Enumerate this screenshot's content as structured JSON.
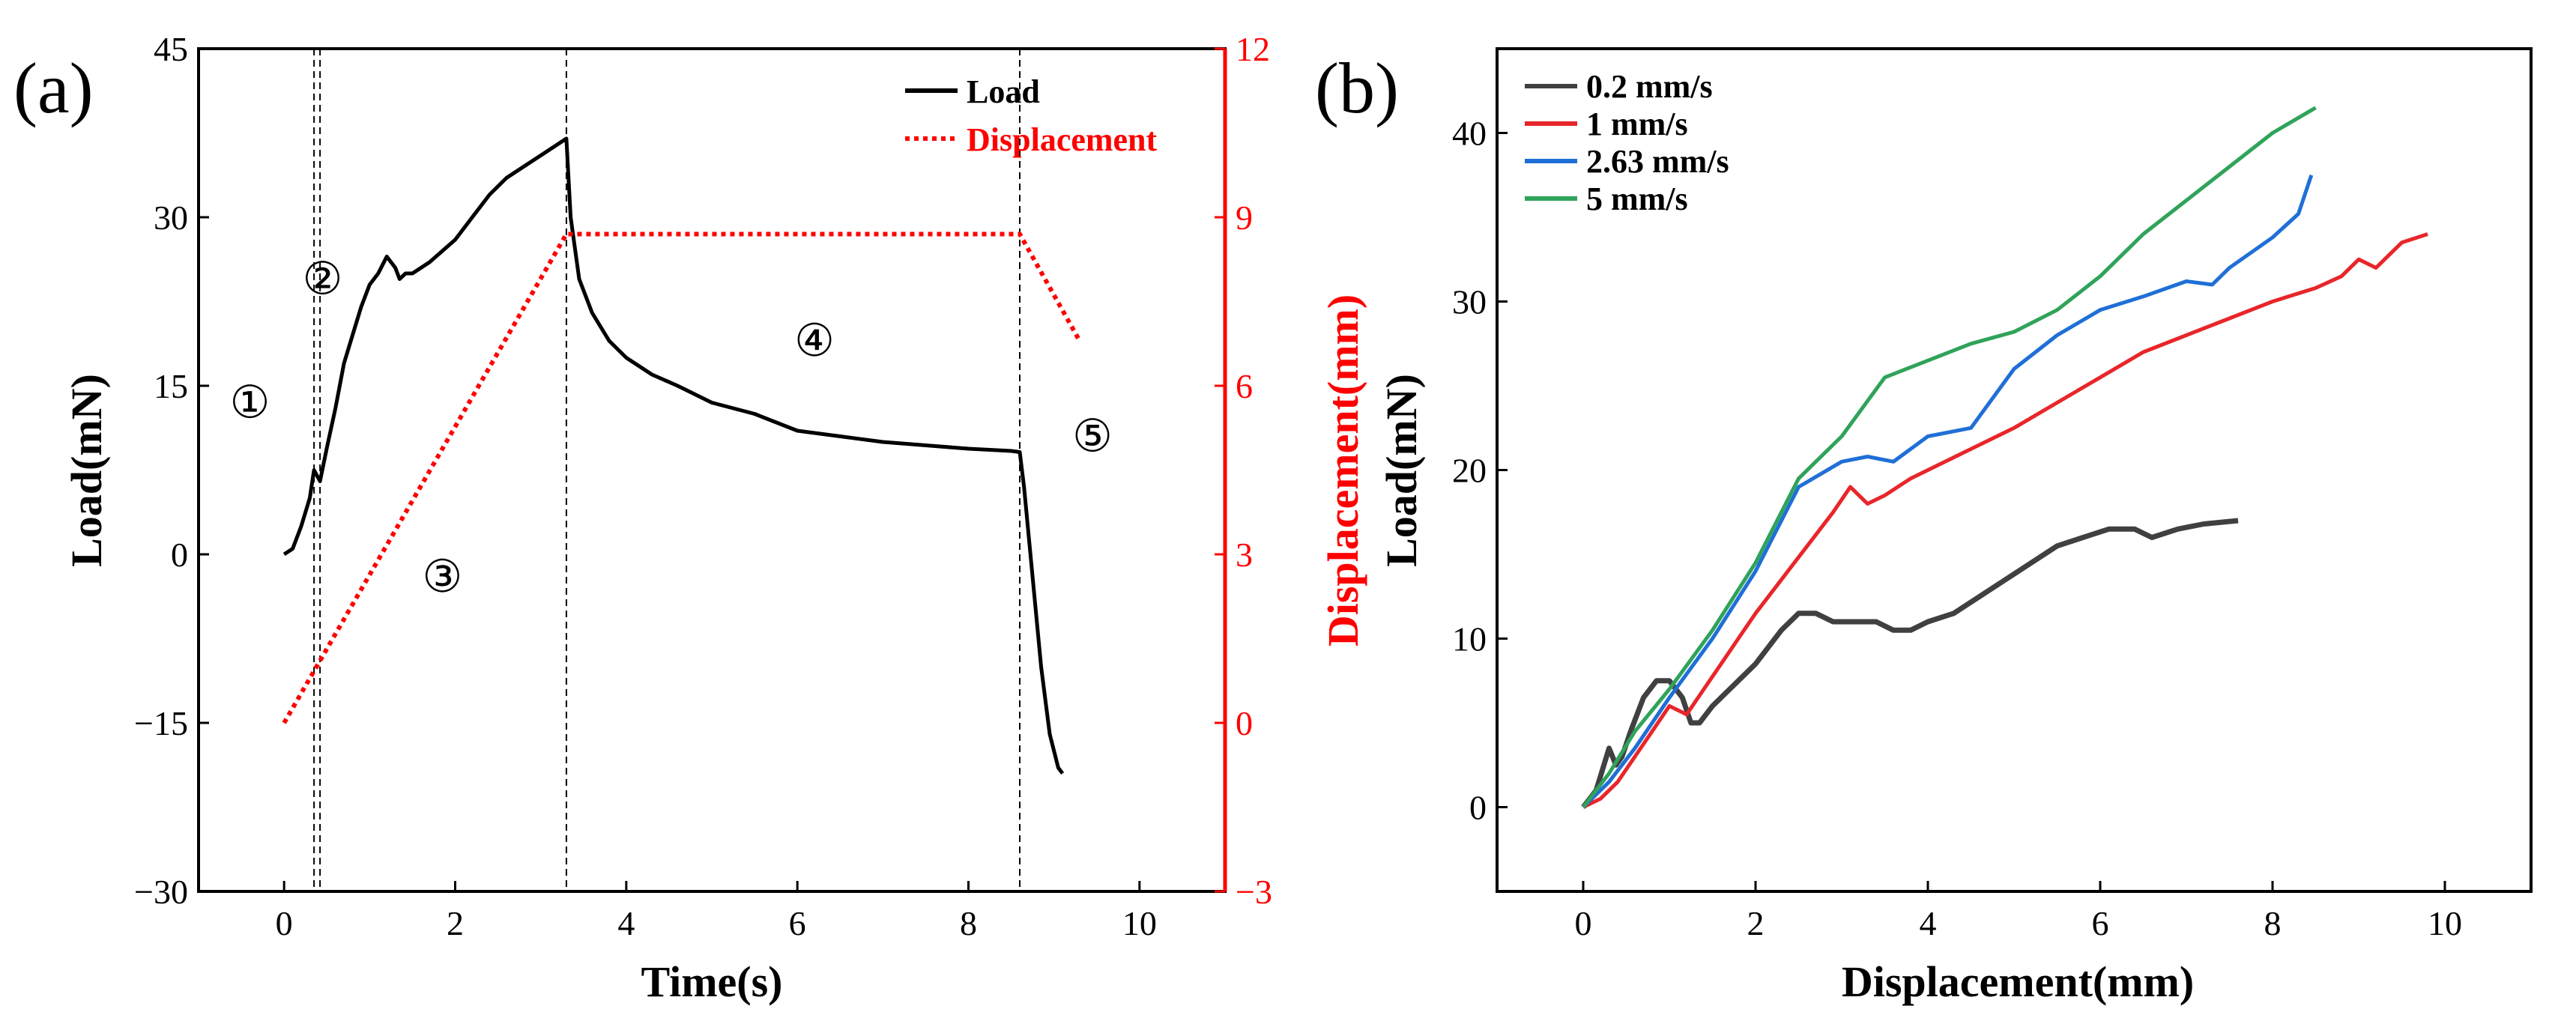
{
  "chart_data": [
    {
      "panel": "(a)",
      "type": "line",
      "xlabel": "Time(s)",
      "ylabel": "Load(mN)",
      "y2label": "Displacement(mm)",
      "xlim": [
        -1,
        11
      ],
      "ylim": [
        -30,
        45
      ],
      "y2lim": [
        -3,
        12
      ],
      "xticks": [
        "0",
        "2",
        "4",
        "6",
        "8",
        "10"
      ],
      "yticks": [
        "−30",
        "−15",
        "0",
        "15",
        "30",
        "45"
      ],
      "y2ticks": [
        "−3",
        "0",
        "3",
        "6",
        "9",
        "12"
      ],
      "legend": [
        "Load",
        "Displacement"
      ],
      "colors": {
        "load": "#000000",
        "displacement": "#ff0000"
      },
      "series": [
        {
          "name": "Load",
          "axis": "left",
          "x": [
            0,
            0.1,
            0.2,
            0.3,
            0.35,
            0.42,
            0.5,
            0.6,
            0.7,
            0.8,
            0.9,
            1.0,
            1.1,
            1.2,
            1.3,
            1.35,
            1.42,
            1.5,
            1.7,
            2.0,
            2.2,
            2.4,
            2.6,
            2.8,
            3.0,
            3.2,
            3.3,
            3.35,
            3.45,
            3.6,
            3.8,
            4.0,
            4.3,
            4.6,
            5.0,
            5.5,
            6.0,
            6.5,
            7.0,
            7.5,
            8.0,
            8.5,
            8.6,
            8.65,
            8.75,
            8.85,
            8.95,
            9.05,
            9.1
          ],
          "values": [
            0,
            0.5,
            2.5,
            5,
            7.5,
            6.5,
            9.5,
            13,
            17,
            19.5,
            22,
            24,
            25,
            26.5,
            25.5,
            24.5,
            25,
            25,
            26,
            28,
            30,
            32,
            33.5,
            34.5,
            35.5,
            36.5,
            37,
            30,
            24.5,
            21.5,
            19,
            17.5,
            16,
            15,
            13.5,
            12.5,
            11,
            10.5,
            10,
            9.7,
            9.4,
            9.2,
            9.1,
            6,
            -2,
            -10,
            -16,
            -19,
            -19.5
          ]
        },
        {
          "name": "Displacement",
          "axis": "right",
          "x": [
            0,
            3.3,
            8.6,
            9.3
          ],
          "values": [
            0,
            8.7,
            8.7,
            6.8
          ]
        }
      ],
      "vlines": [
        0.35,
        0.42,
        3.3,
        8.6
      ],
      "annotations": [
        {
          "text": "①",
          "x": -0.4,
          "y": 13.5
        },
        {
          "text": "②",
          "x": 0.45,
          "y": 24.5
        },
        {
          "text": "③",
          "x": 1.85,
          "y": -2
        },
        {
          "text": "④",
          "x": 6.2,
          "y": 19
        },
        {
          "text": "⑤",
          "x": 9.45,
          "y": 10.5
        }
      ]
    },
    {
      "panel": "(b)",
      "type": "line",
      "xlabel": "Displacement(mm)",
      "ylabel": "Load(mN)",
      "xlim": [
        -1,
        11
      ],
      "ylim": [
        -5,
        45
      ],
      "xticks": [
        "0",
        "2",
        "4",
        "6",
        "8",
        "10"
      ],
      "yticks": [
        "0",
        "10",
        "20",
        "30",
        "40"
      ],
      "legend": [
        "0.2 mm/s",
        "1 mm/s",
        "2.63 mm/s",
        "5 mm/s"
      ],
      "series": [
        {
          "name": "0.2 mm/s",
          "color": "#404040",
          "x": [
            0,
            0.15,
            0.3,
            0.38,
            0.45,
            0.55,
            0.7,
            0.85,
            1.0,
            1.15,
            1.25,
            1.35,
            1.5,
            1.7,
            2.0,
            2.3,
            2.5,
            2.7,
            2.9,
            3.1,
            3.4,
            3.6,
            3.8,
            4.0,
            4.3,
            4.6,
            4.9,
            5.2,
            5.5,
            5.8,
            6.1,
            6.4,
            6.6,
            6.9,
            7.2,
            7.6
          ],
          "values": [
            0,
            1,
            3.5,
            2.5,
            3,
            4.5,
            6.5,
            7.5,
            7.5,
            6.5,
            5,
            5,
            6,
            7,
            8.5,
            10.5,
            11.5,
            11.5,
            11,
            11,
            11,
            10.5,
            10.5,
            11,
            11.5,
            12.5,
            13.5,
            14.5,
            15.5,
            16,
            16.5,
            16.5,
            16,
            16.5,
            16.8,
            17
          ]
        },
        {
          "name": "1 mm/s",
          "color": "#e8262a",
          "x": [
            0,
            0.2,
            0.4,
            0.6,
            0.8,
            1.0,
            1.2,
            1.4,
            1.6,
            1.8,
            2.0,
            2.3,
            2.6,
            2.9,
            3.1,
            3.2,
            3.3,
            3.5,
            3.8,
            4.2,
            4.6,
            5.0,
            5.5,
            6.0,
            6.5,
            7.0,
            7.5,
            8.0,
            8.5,
            8.8,
            9.0,
            9.2,
            9.5,
            9.8
          ],
          "values": [
            0,
            0.5,
            1.5,
            3,
            4.5,
            6,
            5.5,
            7,
            8.5,
            10,
            11.5,
            13.5,
            15.5,
            17.5,
            19,
            18.5,
            18,
            18.5,
            19.5,
            20.5,
            21.5,
            22.5,
            24,
            25.5,
            27,
            28,
            29,
            30,
            30.8,
            31.5,
            32.5,
            32,
            33.5,
            34
          ]
        },
        {
          "name": "2.63 mm/s",
          "color": "#1f6fd6",
          "x": [
            0,
            0.3,
            0.6,
            1.0,
            1.5,
            2.0,
            2.5,
            3.0,
            3.3,
            3.6,
            4.0,
            4.5,
            5.0,
            5.5,
            6.0,
            6.5,
            7.0,
            7.3,
            7.5,
            8.0,
            8.3,
            8.45
          ],
          "values": [
            0,
            1.5,
            3.5,
            6.5,
            10,
            14,
            19,
            20.5,
            20.8,
            20.5,
            22,
            22.5,
            26,
            28,
            29.5,
            30.3,
            31.2,
            31,
            32,
            33.8,
            35.2,
            37.5
          ]
        },
        {
          "name": "5 mm/s",
          "color": "#2fa35a",
          "x": [
            0,
            0.3,
            0.6,
            1.0,
            1.5,
            2.0,
            2.5,
            3.0,
            3.5,
            4.0,
            4.5,
            5.0,
            5.5,
            6.0,
            6.5,
            7.0,
            7.5,
            8.0,
            8.5
          ],
          "values": [
            0,
            2,
            4.5,
            7,
            10.5,
            14.5,
            19.5,
            22,
            25.5,
            26.5,
            27.5,
            28.2,
            29.5,
            31.5,
            34,
            36,
            38,
            40,
            41.5
          ]
        }
      ]
    }
  ]
}
